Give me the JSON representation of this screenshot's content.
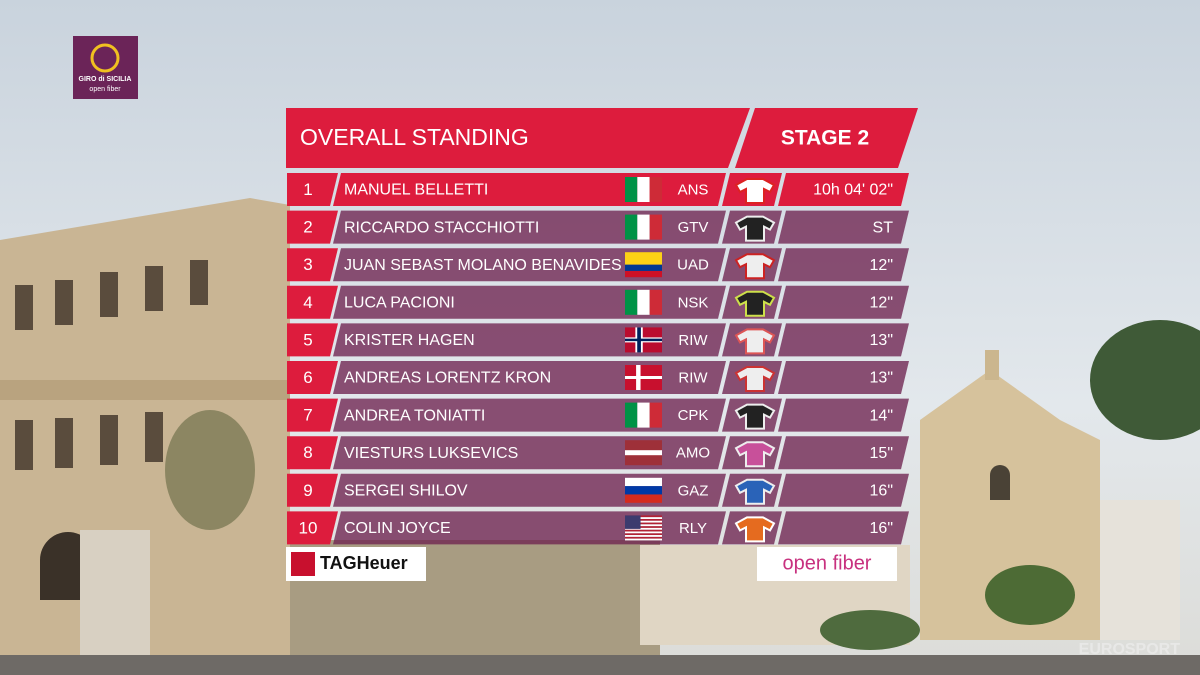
{
  "logo": {
    "title": "GIRO di SICILIA",
    "subtitle": "open fiber"
  },
  "header": {
    "title": "OVERALL STANDING",
    "stage": "STAGE 2"
  },
  "table": {
    "rows": [
      [
        1,
        "MANUEL BELLETTI",
        "ANS",
        "10h 04' 02\""
      ],
      [
        2,
        "RICCARDO STACCHIOTTI",
        "GTV",
        "ST"
      ],
      [
        3,
        "JUAN SEBAST MOLANO BENAVIDES",
        "UAD",
        "12\""
      ],
      [
        4,
        "LUCA PACIONI",
        "NSK",
        "12\""
      ],
      [
        5,
        "KRISTER HAGEN",
        "RIW",
        "13\""
      ],
      [
        6,
        "ANDREAS LORENTZ KRON",
        "RIW",
        "13\""
      ],
      [
        7,
        "ANDREA TONIATTI",
        "CPK",
        "14\""
      ],
      [
        8,
        "VIESTURS LUKSEVICS",
        "AMO",
        "15\""
      ],
      [
        9,
        "SERGEI SHILOV",
        "GAZ",
        "16\""
      ],
      [
        10,
        "COLIN JOYCE",
        "RLY",
        "16\""
      ]
    ]
  },
  "sponsors": {
    "left": "TAGHeuer",
    "right": "open fiber"
  },
  "watermark": "EUROSPORT"
}
